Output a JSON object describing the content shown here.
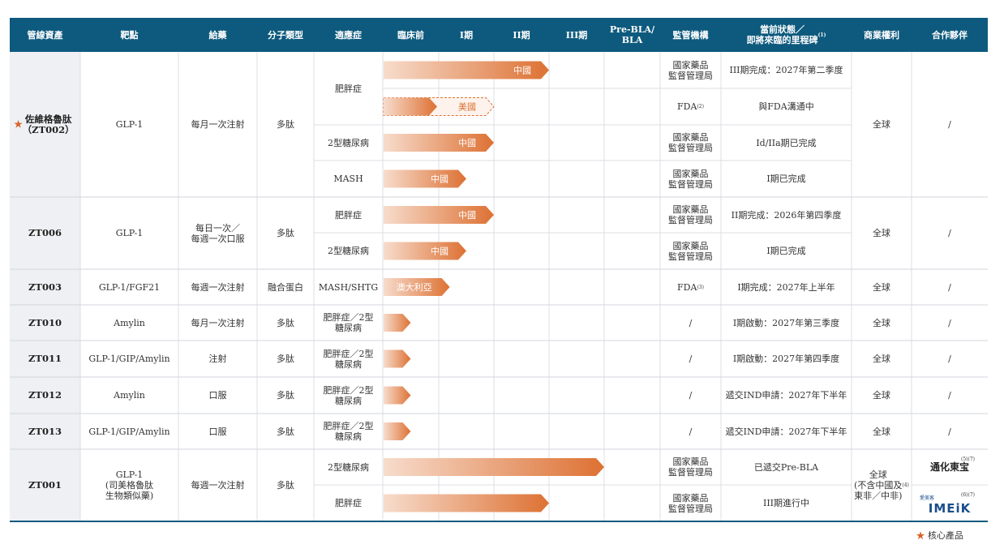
{
  "colors": {
    "header": "#0e5a7e",
    "bar_end": "#dd7133",
    "bar_start": "#f7dccc",
    "star": "#d9622b"
  },
  "headers": [
    "管線資產",
    "靶點",
    "給藥",
    "分子類型",
    "適應症",
    "臨床前",
    "I期",
    "II期",
    "III期",
    "Pre-BLA/\nBLA",
    "監管機構",
    "當前狀態／\n即將來臨的里程碑",
    "商業權利",
    "合作夥伴"
  ],
  "header_note": "(1)",
  "assets": [
    {
      "name": "佐維格魯肽\n（ZT002）",
      "star": true,
      "target": "GLP-1",
      "dosing": "每月一次注射",
      "molecule": "多肽",
      "rights": "全球",
      "partner": "/",
      "rows": [
        {
          "indication": "肥胖症",
          "stage": 3.0,
          "bar_label": "中國",
          "dashed": false,
          "regulator": "國家藥品\n監督管理局",
          "status": "III期完成：2027年第二季度"
        },
        {
          "indication": "",
          "stage": 2.0,
          "bar_label": "美國",
          "dashed": true,
          "regulator": "FDA",
          "regulator_note": "(2)",
          "status": "與FDA溝通中"
        },
        {
          "indication": "2型糖尿病",
          "stage": 2.0,
          "bar_label": "中國",
          "dashed": false,
          "regulator": "國家藥品\n監督管理局",
          "status": "Id/IIa期已完成"
        },
        {
          "indication": "MASH",
          "stage": 1.5,
          "bar_label": "中國",
          "dashed": false,
          "regulator": "國家藥品\n監督管理局",
          "status": "I期已完成"
        }
      ]
    },
    {
      "name": "ZT006",
      "star": false,
      "target": "GLP-1",
      "dosing": "每日一次／\n每週一次口服",
      "molecule": "多肽",
      "rights": "全球",
      "partner": "/",
      "rows": [
        {
          "indication": "肥胖症",
          "stage": 2.0,
          "bar_label": "中國",
          "dashed": false,
          "regulator": "國家藥品\n監督管理局",
          "status": "II期完成：2026年第四季度"
        },
        {
          "indication": "2型糖尿病",
          "stage": 1.5,
          "bar_label": "中國",
          "dashed": false,
          "regulator": "國家藥品\n監督管理局",
          "status": "I期已完成"
        }
      ]
    },
    {
      "name": "ZT003",
      "star": false,
      "target": "GLP-1/FGF21",
      "dosing": "每週一次注射",
      "molecule": "融合蛋白",
      "rights": "全球",
      "partner": "/",
      "rows": [
        {
          "indication": "MASH/SHTG",
          "stage": 1.2,
          "bar_label": "澳大利亞",
          "dashed": false,
          "regulator": "FDA",
          "regulator_note": "(3)",
          "status": "I期完成：2027年上半年"
        }
      ]
    },
    {
      "name": "ZT010",
      "star": false,
      "target": "Amylin",
      "dosing": "每月一次注射",
      "molecule": "多肽",
      "rights": "全球",
      "partner": "/",
      "rows": [
        {
          "indication": "肥胖症／2型\n糖尿病",
          "stage": 0.5,
          "bar_label": "",
          "dashed": false,
          "regulator": "/",
          "status": "I期啟動：2027年第三季度"
        }
      ]
    },
    {
      "name": "ZT011",
      "star": false,
      "target": "GLP-1/GIP/Amylin",
      "dosing": "注射",
      "molecule": "多肽",
      "rights": "全球",
      "partner": "/",
      "rows": [
        {
          "indication": "肥胖症／2型\n糖尿病",
          "stage": 0.5,
          "bar_label": "",
          "dashed": false,
          "regulator": "/",
          "status": "I期啟動：2027年第四季度"
        }
      ]
    },
    {
      "name": "ZT012",
      "star": false,
      "target": "Amylin",
      "dosing": "口服",
      "molecule": "多肽",
      "rights": "全球",
      "partner": "/",
      "rows": [
        {
          "indication": "肥胖症／2型\n糖尿病",
          "stage": 0.5,
          "bar_label": "",
          "dashed": false,
          "regulator": "/",
          "status": "遞交IND申請：2027年下半年"
        }
      ]
    },
    {
      "name": "ZT013",
      "star": false,
      "target": "GLP-1/GIP/Amylin",
      "dosing": "口服",
      "molecule": "多肽",
      "rights": "全球",
      "partner": "/",
      "rows": [
        {
          "indication": "肥胖症／2型\n糖尿病",
          "stage": 0.5,
          "bar_label": "",
          "dashed": false,
          "regulator": "/",
          "status": "遞交IND申請：2027年下半年"
        }
      ]
    },
    {
      "name": "ZT001",
      "star": false,
      "target": "GLP-1\n(司美格魯肽\n生物類似藥)",
      "dosing": "每週一次注射",
      "molecule": "多肽",
      "rights": "全球\n(不含中國及\n東非／中非)",
      "rights_note": "(4)",
      "partner": "",
      "partners": [
        {
          "logo": "通化東宝",
          "note": "(5)(7)"
        },
        {
          "logo": "IMEiK",
          "sub": "愛美客",
          "note": "(6)(7)"
        }
      ],
      "rows": [
        {
          "indication": "2型糖尿病",
          "stage": 4.0,
          "bar_label": "",
          "dashed": false,
          "regulator": "國家藥品\n監督管理局",
          "status": "已遞交Pre-BLA"
        },
        {
          "indication": "肥胖症",
          "stage": 3.0,
          "bar_label": "",
          "dashed": false,
          "regulator": "國家藥品\n監督管理局",
          "status": "III期進行中"
        }
      ]
    }
  ],
  "legend": {
    "star": "★",
    "label": "核心產品"
  }
}
